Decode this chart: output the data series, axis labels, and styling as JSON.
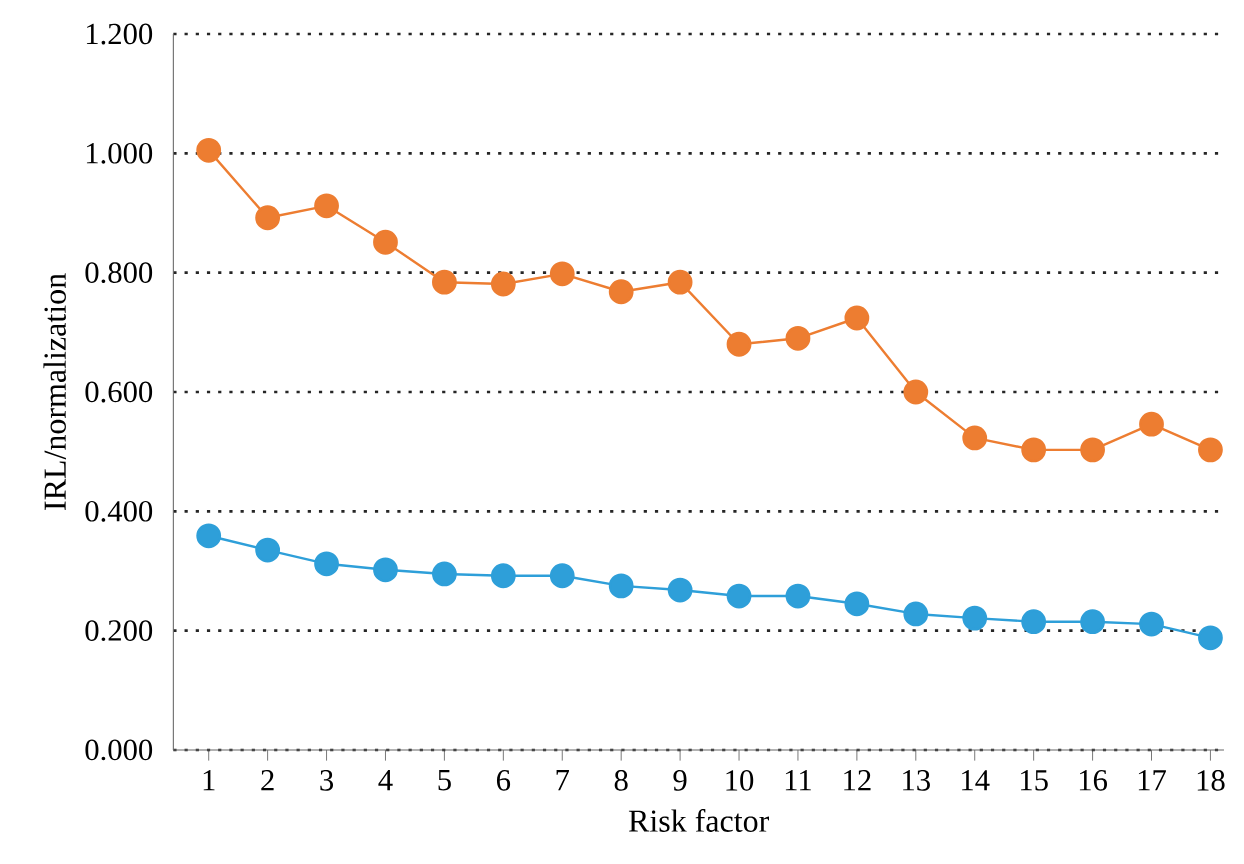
{
  "chart_data": {
    "type": "line",
    "xlabel": "Risk factor",
    "ylabel": "IRL/normalization",
    "categories": [
      "1",
      "2",
      "3",
      "4",
      "5",
      "6",
      "7",
      "8",
      "9",
      "10",
      "11",
      "12",
      "13",
      "14",
      "15",
      "16",
      "17",
      "18"
    ],
    "series": [
      {
        "color": "#ed7d31",
        "values": [
          1.005,
          0.892,
          0.912,
          0.851,
          0.784,
          0.781,
          0.798,
          0.768,
          0.784,
          0.68,
          0.69,
          0.724,
          0.6,
          0.523,
          0.503,
          0.503,
          0.546,
          0.503
        ]
      },
      {
        "color": "#2e9fd9",
        "values": [
          0.359,
          0.335,
          0.312,
          0.302,
          0.295,
          0.292,
          0.292,
          0.275,
          0.268,
          0.258,
          0.258,
          0.245,
          0.228,
          0.221,
          0.215,
          0.215,
          0.211,
          0.188
        ]
      }
    ],
    "ylim": [
      0,
      1.2
    ],
    "yticks": [
      {
        "value": 0,
        "label": "0.000"
      },
      {
        "value": 0.2,
        "label": "0.200"
      },
      {
        "value": 0.4,
        "label": "0.400"
      },
      {
        "value": 0.6,
        "label": "0.600"
      },
      {
        "value": 0.8,
        "label": "0.800"
      },
      {
        "value": 1.0,
        "label": "1.000"
      },
      {
        "value": 1.2,
        "label": "1.200"
      }
    ],
    "grid": "y",
    "marker": "circle",
    "line_style": "solid"
  }
}
